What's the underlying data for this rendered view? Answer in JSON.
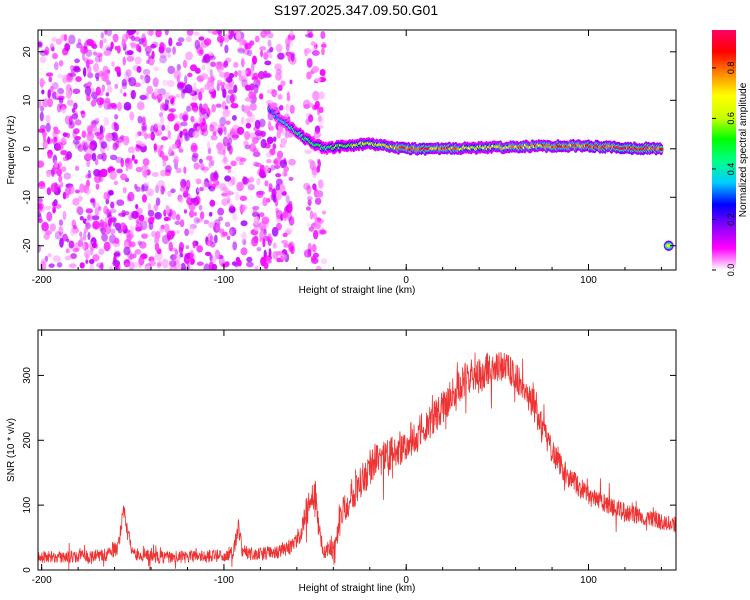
{
  "title": "S197.2025.347.09.50.G01",
  "colors": {
    "snr_line": "#ee3333",
    "frame": "#000000"
  },
  "chart_data": [
    {
      "type": "heatmap",
      "name": "spectrogram",
      "xlabel": "Height of straight line (km)",
      "ylabel": "Frequency (Hz)",
      "xlim": [
        -202,
        148
      ],
      "ylim": [
        -25,
        24.5
      ],
      "xticks": [
        -200,
        -100,
        0,
        100
      ],
      "xtick_labels": [
        "-200",
        "-100",
        "0",
        "100"
      ],
      "yticks": [
        -20,
        -10,
        0,
        10,
        20
      ],
      "ytick_labels": [
        "-20",
        "-10",
        "0",
        "10",
        "20"
      ],
      "colorbar": {
        "label": "Normalized spectral amplitude",
        "range": [
          0,
          0.95
        ],
        "ticks": [
          0,
          0.2,
          0.4,
          0.6,
          0.8
        ],
        "tick_labels": [
          "0.0",
          "0.2",
          "0.4",
          "0.6",
          "0.8"
        ],
        "colormap": [
          "#ffffff",
          "#ff00ff",
          "#8800ff",
          "#0000ff",
          "#00ccff",
          "#00ff88",
          "#00ff00",
          "#ccff00",
          "#ffff00",
          "#ff8800",
          "#ff0000",
          "#ff0066"
        ]
      },
      "features": [
        {
          "kind": "noise_speckle",
          "x_range": [
            -202,
            -62
          ],
          "y_range": [
            -25,
            24.5
          ],
          "amplitude": 0.15
        },
        {
          "kind": "noise_speckle",
          "x_range": [
            -55,
            -45
          ],
          "y_range": [
            -25,
            24.5
          ],
          "amplitude": 0.12
        },
        {
          "kind": "signal_band",
          "x": [
            -75,
            -65,
            -55,
            -45,
            -35,
            -20,
            -10,
            0,
            20,
            40,
            60,
            80,
            100,
            120,
            140
          ],
          "center_freq": [
            8,
            5,
            2,
            0,
            0.5,
            1,
            0.5,
            0,
            0,
            0.2,
            0.4,
            0.6,
            0.6,
            0.2,
            0
          ],
          "amplitude": [
            0.3,
            0.4,
            0.5,
            0.45,
            0.55,
            0.6,
            0.7,
            0.85,
            0.8,
            0.6,
            0.75,
            0.8,
            0.85,
            0.9,
            0.85
          ]
        },
        {
          "kind": "blob",
          "x": 144,
          "y": -20,
          "amplitude": 0.7
        }
      ]
    },
    {
      "type": "line",
      "name": "snr",
      "xlabel": "Height of straight line (km)",
      "ylabel": "SNR (10 * v/v)",
      "xlim": [
        -202,
        148
      ],
      "ylim": [
        0,
        370
      ],
      "xticks": [
        -200,
        -100,
        0,
        100
      ],
      "xtick_labels": [
        "-200",
        "-100",
        "0",
        "100"
      ],
      "yticks": [
        0,
        100,
        200,
        300
      ],
      "ytick_labels": [
        "0",
        "100",
        "200",
        "300"
      ],
      "series": [
        {
          "name": "SNR",
          "x": [
            -202,
            -190,
            -175,
            -165,
            -158,
            -155,
            -153,
            -150,
            -140,
            -125,
            -110,
            -100,
            -95,
            -92,
            -90,
            -85,
            -75,
            -65,
            -58,
            -55,
            -50,
            -48,
            -45,
            -40,
            -35,
            -30,
            -25,
            -20,
            -15,
            -10,
            -5,
            0,
            5,
            10,
            15,
            20,
            25,
            30,
            35,
            40,
            45,
            50,
            55,
            60,
            65,
            70,
            75,
            80,
            85,
            90,
            100,
            110,
            120,
            130,
            140,
            148
          ],
          "y": [
            20,
            20,
            21,
            23,
            35,
            90,
            60,
            25,
            20,
            20,
            21,
            22,
            28,
            65,
            30,
            24,
            26,
            32,
            55,
            90,
            120,
            60,
            28,
            30,
            90,
            120,
            140,
            160,
            170,
            175,
            185,
            195,
            205,
            220,
            235,
            250,
            270,
            285,
            300,
            305,
            310,
            315,
            312,
            300,
            280,
            250,
            215,
            185,
            160,
            140,
            115,
            100,
            90,
            80,
            75,
            70
          ],
          "noise_amplitude": [
            20,
            18,
            20,
            20,
            25,
            30,
            25,
            20,
            20,
            20,
            20,
            20,
            22,
            30,
            22,
            20,
            20,
            25,
            30,
            40,
            45,
            35,
            22,
            30,
            50,
            60,
            60,
            60,
            60,
            55,
            55,
            55,
            55,
            55,
            55,
            50,
            55,
            55,
            55,
            55,
            55,
            50,
            50,
            50,
            45,
            45,
            40,
            40,
            35,
            35,
            30,
            30,
            28,
            26,
            25,
            25
          ]
        }
      ]
    }
  ]
}
